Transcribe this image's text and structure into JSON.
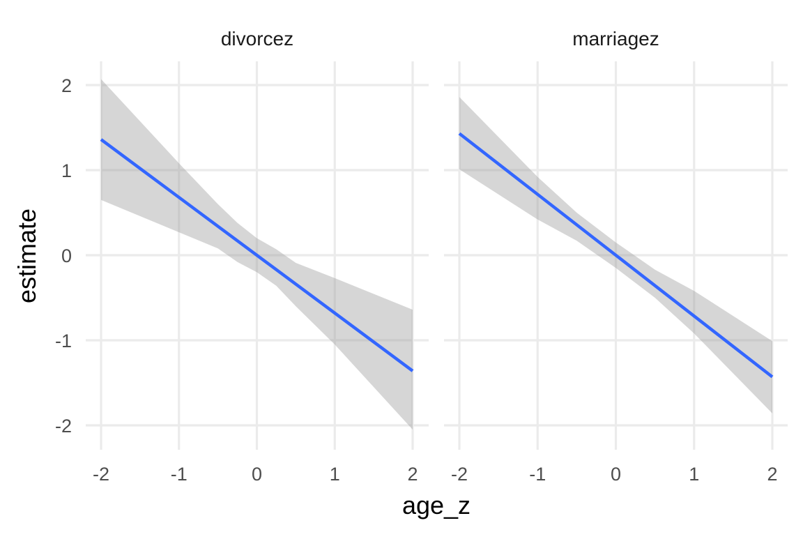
{
  "chart_data": {
    "type": "line",
    "xlabel": "age_z",
    "ylabel": "estimate",
    "xlim": [
      -2,
      2
    ],
    "ylim": [
      -2,
      2
    ],
    "x_ticks": [
      "-2",
      "-1",
      "0",
      "1",
      "2"
    ],
    "y_ticks": [
      "2",
      "1",
      "0",
      "-1",
      "-2"
    ],
    "grid": true,
    "colors": {
      "line": "#3366FF",
      "ribbon": "#999999",
      "grid": "#EBEBEB"
    },
    "facets": [
      {
        "title": "divorcez",
        "series": [
          {
            "x": [
              -2,
              2
            ],
            "y": [
              1.36,
              -1.36
            ]
          }
        ],
        "band": {
          "x": [
            -2,
            -1,
            -0.5,
            -0.25,
            0,
            0.25,
            0.5,
            1,
            2
          ],
          "lower": [
            0.65,
            0.27,
            0.08,
            -0.08,
            -0.2,
            -0.36,
            -0.6,
            -1.05,
            -2.05
          ],
          "upper": [
            2.07,
            1.08,
            0.6,
            0.38,
            0.2,
            0.07,
            -0.09,
            -0.27,
            -0.64
          ]
        }
      },
      {
        "title": "marriagez",
        "series": [
          {
            "x": [
              -2,
              2
            ],
            "y": [
              1.43,
              -1.43
            ]
          }
        ],
        "band": {
          "x": [
            -2,
            -1,
            -0.5,
            0,
            0.5,
            1,
            2
          ],
          "lower": [
            1.01,
            0.42,
            0.17,
            -0.15,
            -0.5,
            -0.92,
            -1.86
          ],
          "upper": [
            1.86,
            0.92,
            0.5,
            0.15,
            -0.17,
            -0.42,
            -1.01
          ]
        }
      }
    ]
  }
}
